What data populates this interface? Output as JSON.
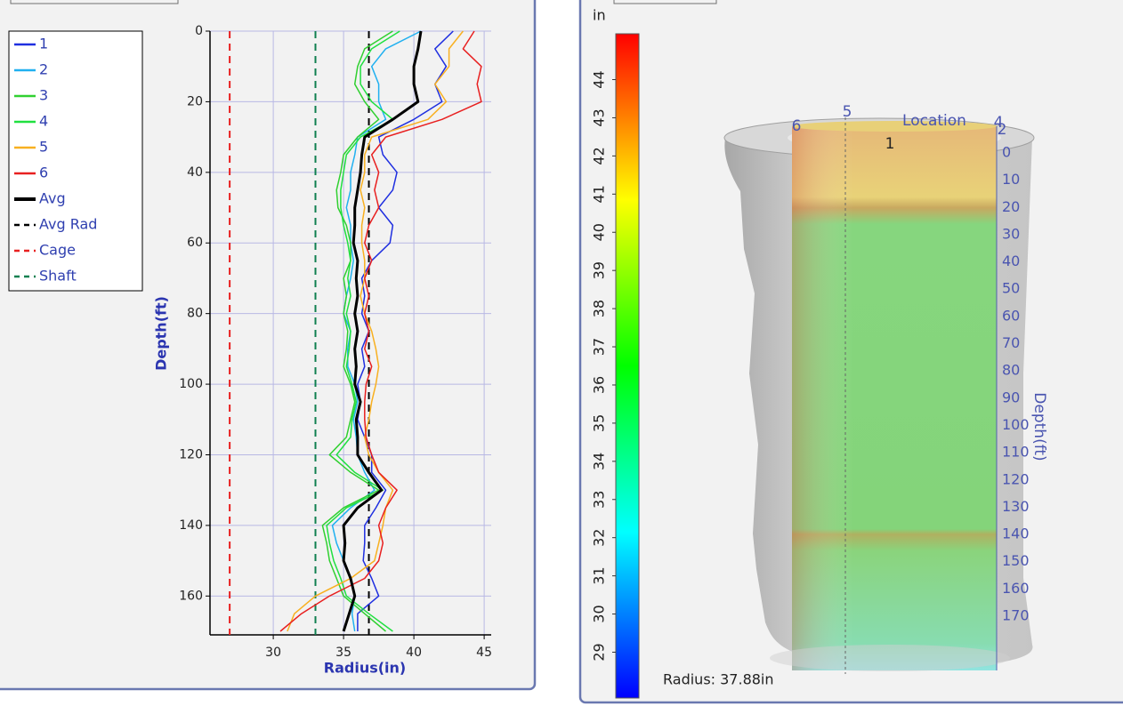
{
  "chart_data": {
    "type": "line",
    "x_label": "Radius(in)",
    "y_label": "Depth(ft)",
    "xlim": [
      25.5,
      45.5
    ],
    "xticks": [
      30,
      35,
      40,
      45
    ],
    "ylim": [
      0,
      171
    ],
    "yticks": [
      0,
      20,
      40,
      60,
      80,
      100,
      120,
      140,
      160
    ],
    "y_inverted": true,
    "grid": true,
    "depths": [
      0,
      5,
      10,
      15,
      20,
      25,
      30,
      35,
      40,
      45,
      50,
      55,
      60,
      65,
      70,
      75,
      80,
      85,
      90,
      95,
      100,
      105,
      110,
      115,
      120,
      125,
      130,
      135,
      140,
      145,
      150,
      155,
      160,
      165,
      170
    ],
    "series": [
      {
        "name": "1",
        "color": "#1f2fe0",
        "values": [
          42.8,
          41.5,
          42.3,
          41.5,
          42.0,
          40.0,
          37.5,
          37.8,
          38.8,
          38.5,
          37.5,
          38.5,
          38.3,
          37.0,
          36.3,
          36.5,
          36.3,
          36.8,
          36.3,
          36.5,
          36.0,
          36.2,
          36.0,
          36.5,
          37.0,
          37.0,
          38.0,
          37.3,
          36.5,
          36.5,
          36.4,
          37.0,
          37.5,
          36.0,
          36.0
        ]
      },
      {
        "name": "2",
        "color": "#20b0f0",
        "values": [
          40.5,
          38.0,
          37.0,
          37.5,
          37.5,
          38.0,
          36.0,
          35.8,
          35.5,
          35.5,
          35.2,
          35.5,
          35.5,
          35.7,
          35.5,
          35.2,
          35.0,
          35.5,
          35.3,
          35.3,
          35.8,
          36.0,
          35.7,
          35.9,
          36.0,
          36.5,
          37.2,
          35.5,
          34.2,
          34.5,
          35.0,
          35.5,
          35.8,
          35.6,
          35.8
        ]
      },
      {
        "name": "3",
        "color": "#30d030",
        "values": [
          38.5,
          36.5,
          36.0,
          35.8,
          36.5,
          37.5,
          36.0,
          35.0,
          34.8,
          34.5,
          34.6,
          35.2,
          35.5,
          35.5,
          35.0,
          35.2,
          35.0,
          35.3,
          35.2,
          35.0,
          35.5,
          35.8,
          35.5,
          35.2,
          34.0,
          35.5,
          37.5,
          35.0,
          33.5,
          33.8,
          34.0,
          34.5,
          35.0,
          36.5,
          38.0
        ]
      },
      {
        "name": "4",
        "color": "#20e040",
        "values": [
          39.0,
          37.0,
          36.2,
          36.2,
          37.0,
          38.5,
          36.2,
          35.2,
          35.0,
          34.8,
          34.8,
          35.0,
          35.3,
          35.5,
          35.3,
          35.5,
          35.2,
          35.5,
          35.4,
          35.2,
          35.6,
          35.9,
          35.6,
          35.5,
          34.5,
          35.8,
          37.8,
          35.2,
          33.8,
          34.0,
          34.3,
          34.8,
          35.2,
          36.8,
          38.5
        ]
      },
      {
        "name": "5",
        "color": "#f8b020",
        "values": [
          43.5,
          42.5,
          42.5,
          41.5,
          42.3,
          41.0,
          37.0,
          36.5,
          36.5,
          36.2,
          36.5,
          36.3,
          36.3,
          36.5,
          36.5,
          36.2,
          36.5,
          37.0,
          37.3,
          37.5,
          37.3,
          37.0,
          36.8,
          36.5,
          36.8,
          37.5,
          38.5,
          38.0,
          37.8,
          37.5,
          37.2,
          35.5,
          33.0,
          31.5,
          31.0
        ]
      },
      {
        "name": "6",
        "color": "#e82020",
        "values": [
          44.3,
          43.5,
          44.8,
          44.5,
          44.8,
          42.0,
          38.0,
          37.0,
          37.5,
          37.2,
          37.5,
          36.8,
          36.5,
          37.0,
          36.5,
          36.8,
          36.5,
          36.8,
          36.5,
          37.0,
          36.6,
          36.5,
          36.5,
          36.6,
          37.0,
          37.5,
          38.8,
          38.0,
          37.5,
          37.8,
          37.5,
          36.5,
          34.0,
          32.0,
          30.5
        ]
      },
      {
        "name": "Avg",
        "color": "#000000",
        "line_width": 3,
        "values": [
          40.5,
          40.3,
          40.0,
          40.0,
          40.3,
          38.5,
          36.5,
          36.3,
          36.2,
          36.0,
          35.8,
          35.8,
          35.7,
          36.0,
          35.9,
          36.0,
          35.8,
          36.0,
          35.8,
          35.9,
          35.8,
          36.2,
          35.9,
          36.0,
          36.0,
          36.8,
          37.7,
          36.0,
          35.0,
          35.1,
          35.0,
          35.5,
          35.8,
          35.4,
          35.0
        ]
      }
    ],
    "ref_lines": [
      {
        "name": "Avg Rad",
        "color": "#000000",
        "value": 36.8
      },
      {
        "name": "Cage",
        "color": "#e82020",
        "value": 26.9
      },
      {
        "name": "Shaft",
        "color": "#108050",
        "value": 33.0
      }
    ]
  },
  "viewer": {
    "unit": "in",
    "colorbar": {
      "lim": [
        27.8,
        45.2
      ],
      "ticks": [
        29,
        30,
        31,
        32,
        33,
        34,
        35,
        36,
        37,
        38,
        39,
        40,
        41,
        42,
        43,
        44
      ],
      "colors": [
        "#0000ff",
        "#00ffff",
        "#00ff00",
        "#ffff00",
        "#ff0000"
      ]
    },
    "location_labels": [
      "6",
      "5",
      "Location",
      "4",
      "2",
      "1"
    ],
    "depth_title": "Depth(ft)",
    "depth_ticks": [
      0,
      10,
      20,
      30,
      40,
      50,
      60,
      70,
      80,
      90,
      100,
      110,
      120,
      130,
      140,
      150,
      160,
      170
    ],
    "readout": "Radius: 37.88in"
  }
}
